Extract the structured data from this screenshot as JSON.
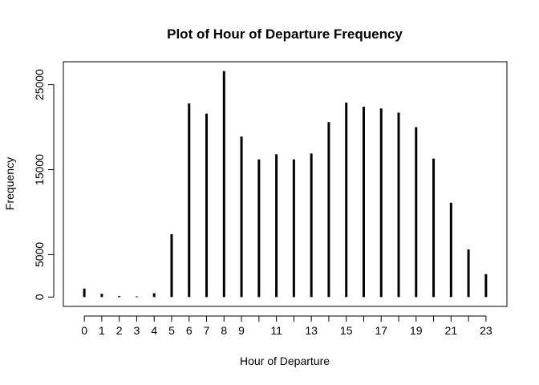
{
  "chart_data": {
    "type": "bar",
    "style": "histogram-lines",
    "title": "Plot of Hour of Departure Frequency",
    "xlabel": "Hour of Departure",
    "ylabel": "Frequency",
    "x": [
      0,
      1,
      2,
      3,
      4,
      5,
      6,
      7,
      8,
      9,
      10,
      11,
      12,
      13,
      14,
      15,
      16,
      17,
      18,
      19,
      20,
      21,
      22,
      23
    ],
    "values": [
      1000,
      380,
      120,
      80,
      450,
      7400,
      22800,
      21600,
      26600,
      18900,
      16200,
      16800,
      16200,
      16900,
      20600,
      22900,
      22400,
      22200,
      21700,
      20000,
      16300,
      11100,
      5600,
      2700
    ],
    "x_tick_labels": [
      "0",
      "1",
      "2",
      "3",
      "4",
      "5",
      "6",
      "7",
      "8",
      "9",
      "11",
      "13",
      "15",
      "17",
      "19",
      "21",
      "23"
    ],
    "x_tick_positions": [
      0,
      1,
      2,
      3,
      4,
      5,
      6,
      7,
      8,
      9,
      11,
      13,
      15,
      17,
      19,
      21,
      23
    ],
    "y_ticks": [
      0,
      5000,
      15000,
      25000
    ],
    "y_tick_labels": [
      "0",
      "5000",
      "15000",
      "25000"
    ],
    "xlim": [
      -1.2,
      24.2
    ],
    "ylim": [
      -1100,
      27700
    ],
    "grid": false,
    "color": "#000000"
  }
}
